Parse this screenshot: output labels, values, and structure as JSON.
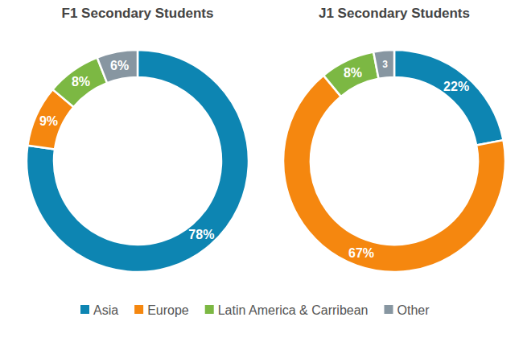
{
  "chart_data": [
    {
      "type": "pie",
      "title": "F1 Secondary Students",
      "categories": [
        "Asia",
        "Europe",
        "Latin America & Carribean",
        "Other"
      ],
      "values": [
        78,
        9,
        8,
        6
      ],
      "value_labels": [
        "78%",
        "9%",
        "8%",
        "6%"
      ],
      "colors": [
        "#0d85b2",
        "#f5870f",
        "#7cb843",
        "#8796a1"
      ],
      "data_labels": true,
      "legend": "bottom"
    },
    {
      "type": "pie",
      "title": "J1 Secondary Students",
      "categories": [
        "Asia",
        "Europe",
        "Latin America & Carribean",
        "Other"
      ],
      "values": [
        22,
        67,
        8,
        3
      ],
      "value_labels": [
        "22%",
        "67%",
        "8%",
        "3"
      ],
      "colors": [
        "#0d85b2",
        "#f5870f",
        "#7cb843",
        "#8796a1"
      ],
      "data_labels": true,
      "legend": "bottom"
    }
  ]
}
